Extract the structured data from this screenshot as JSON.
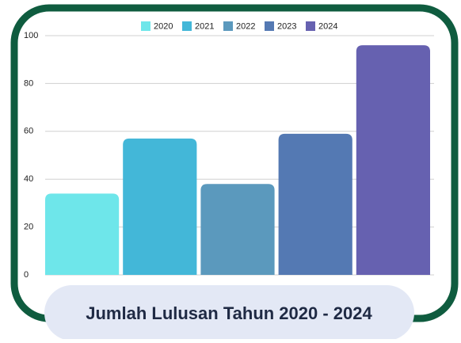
{
  "chart_data": {
    "type": "bar",
    "title": "Jumlah Lulusan Tahun 2020 - 2024",
    "series": [
      {
        "name": "2020",
        "color": "#6ee6ea",
        "values": [
          34
        ]
      },
      {
        "name": "2021",
        "color": "#43b7d8",
        "values": [
          57
        ]
      },
      {
        "name": "2022",
        "color": "#5b99bd",
        "values": [
          38
        ]
      },
      {
        "name": "2023",
        "color": "#5479b3",
        "values": [
          59
        ]
      },
      {
        "name": "2024",
        "color": "#6661b0",
        "values": [
          96
        ]
      }
    ],
    "ylim": [
      0,
      100
    ],
    "yticks": [
      0,
      20,
      40,
      60,
      80,
      100
    ],
    "grid": true,
    "legend": "top"
  }
}
